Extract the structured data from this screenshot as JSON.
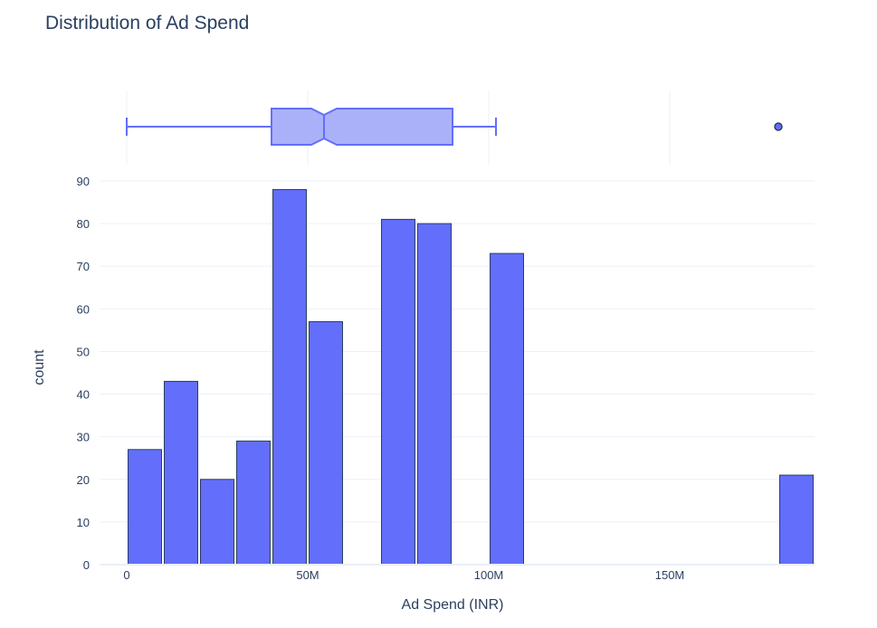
{
  "chart_data": {
    "type": "bar",
    "title": "Distribution of Ad Spend",
    "xlabel": "Ad Spend (INR)",
    "ylabel": "count",
    "x_unit": "M",
    "xlim": [
      -5,
      190
    ],
    "ylim": [
      0,
      90
    ],
    "xticks": [
      0,
      50,
      100,
      150
    ],
    "xtick_labels": [
      "0",
      "50M",
      "100M",
      "150M"
    ],
    "yticks": [
      0,
      10,
      20,
      30,
      40,
      50,
      60,
      70,
      80,
      90
    ],
    "bin_width": 10,
    "bins": [
      {
        "start": 0,
        "end": 10,
        "count": 27
      },
      {
        "start": 10,
        "end": 20,
        "count": 43
      },
      {
        "start": 20,
        "end": 30,
        "count": 20
      },
      {
        "start": 30,
        "end": 40,
        "count": 29
      },
      {
        "start": 40,
        "end": 50,
        "count": 88
      },
      {
        "start": 50,
        "end": 60,
        "count": 57
      },
      {
        "start": 70,
        "end": 80,
        "count": 81
      },
      {
        "start": 80,
        "end": 90,
        "count": 80
      },
      {
        "start": 100,
        "end": 110,
        "count": 73
      },
      {
        "start": 180,
        "end": 190,
        "count": 21
      }
    ],
    "boxplot": {
      "min": 0,
      "q1": 40,
      "median": 54.5,
      "q3": 90,
      "max": 102,
      "notch_low": 51,
      "notch_high": 58,
      "outliers": [
        180
      ]
    },
    "grid": true,
    "bar_color": "#636efa",
    "box_fill": "#abb1f9",
    "box_line": "#636efa"
  }
}
